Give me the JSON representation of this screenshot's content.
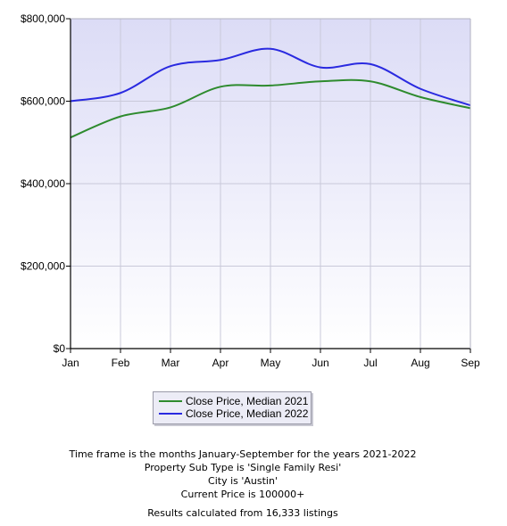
{
  "chart_data": {
    "type": "line",
    "categories": [
      "Jan",
      "Feb",
      "Mar",
      "Apr",
      "May",
      "Jun",
      "Jul",
      "Aug",
      "Sep"
    ],
    "y_ticks": [
      "$0",
      "$200,000",
      "$400,000",
      "$600,000",
      "$800,000"
    ],
    "y_tick_values": [
      0,
      200000,
      400000,
      600000,
      800000
    ],
    "ylim": [
      0,
      800000
    ],
    "grid": true,
    "legend_position": "bottom-center",
    "series": [
      {
        "name": "Close Price, Median 2021",
        "color": "#2e8b2e",
        "values": [
          512000,
          563000,
          585000,
          635000,
          638000,
          648000,
          648000,
          610000,
          583000
        ]
      },
      {
        "name": "Close Price, Median 2022",
        "color": "#2a2ae0",
        "values": [
          600000,
          620000,
          685000,
          700000,
          727000,
          682000,
          690000,
          630000,
          590000
        ]
      }
    ]
  },
  "captions": [
    "Time frame is the months January-September for the years 2021-2022",
    "Property Sub Type is 'Single Family Resi'",
    "City is 'Austin'",
    "Current Price is 100000+",
    "Results calculated from 16,333 listings"
  ]
}
